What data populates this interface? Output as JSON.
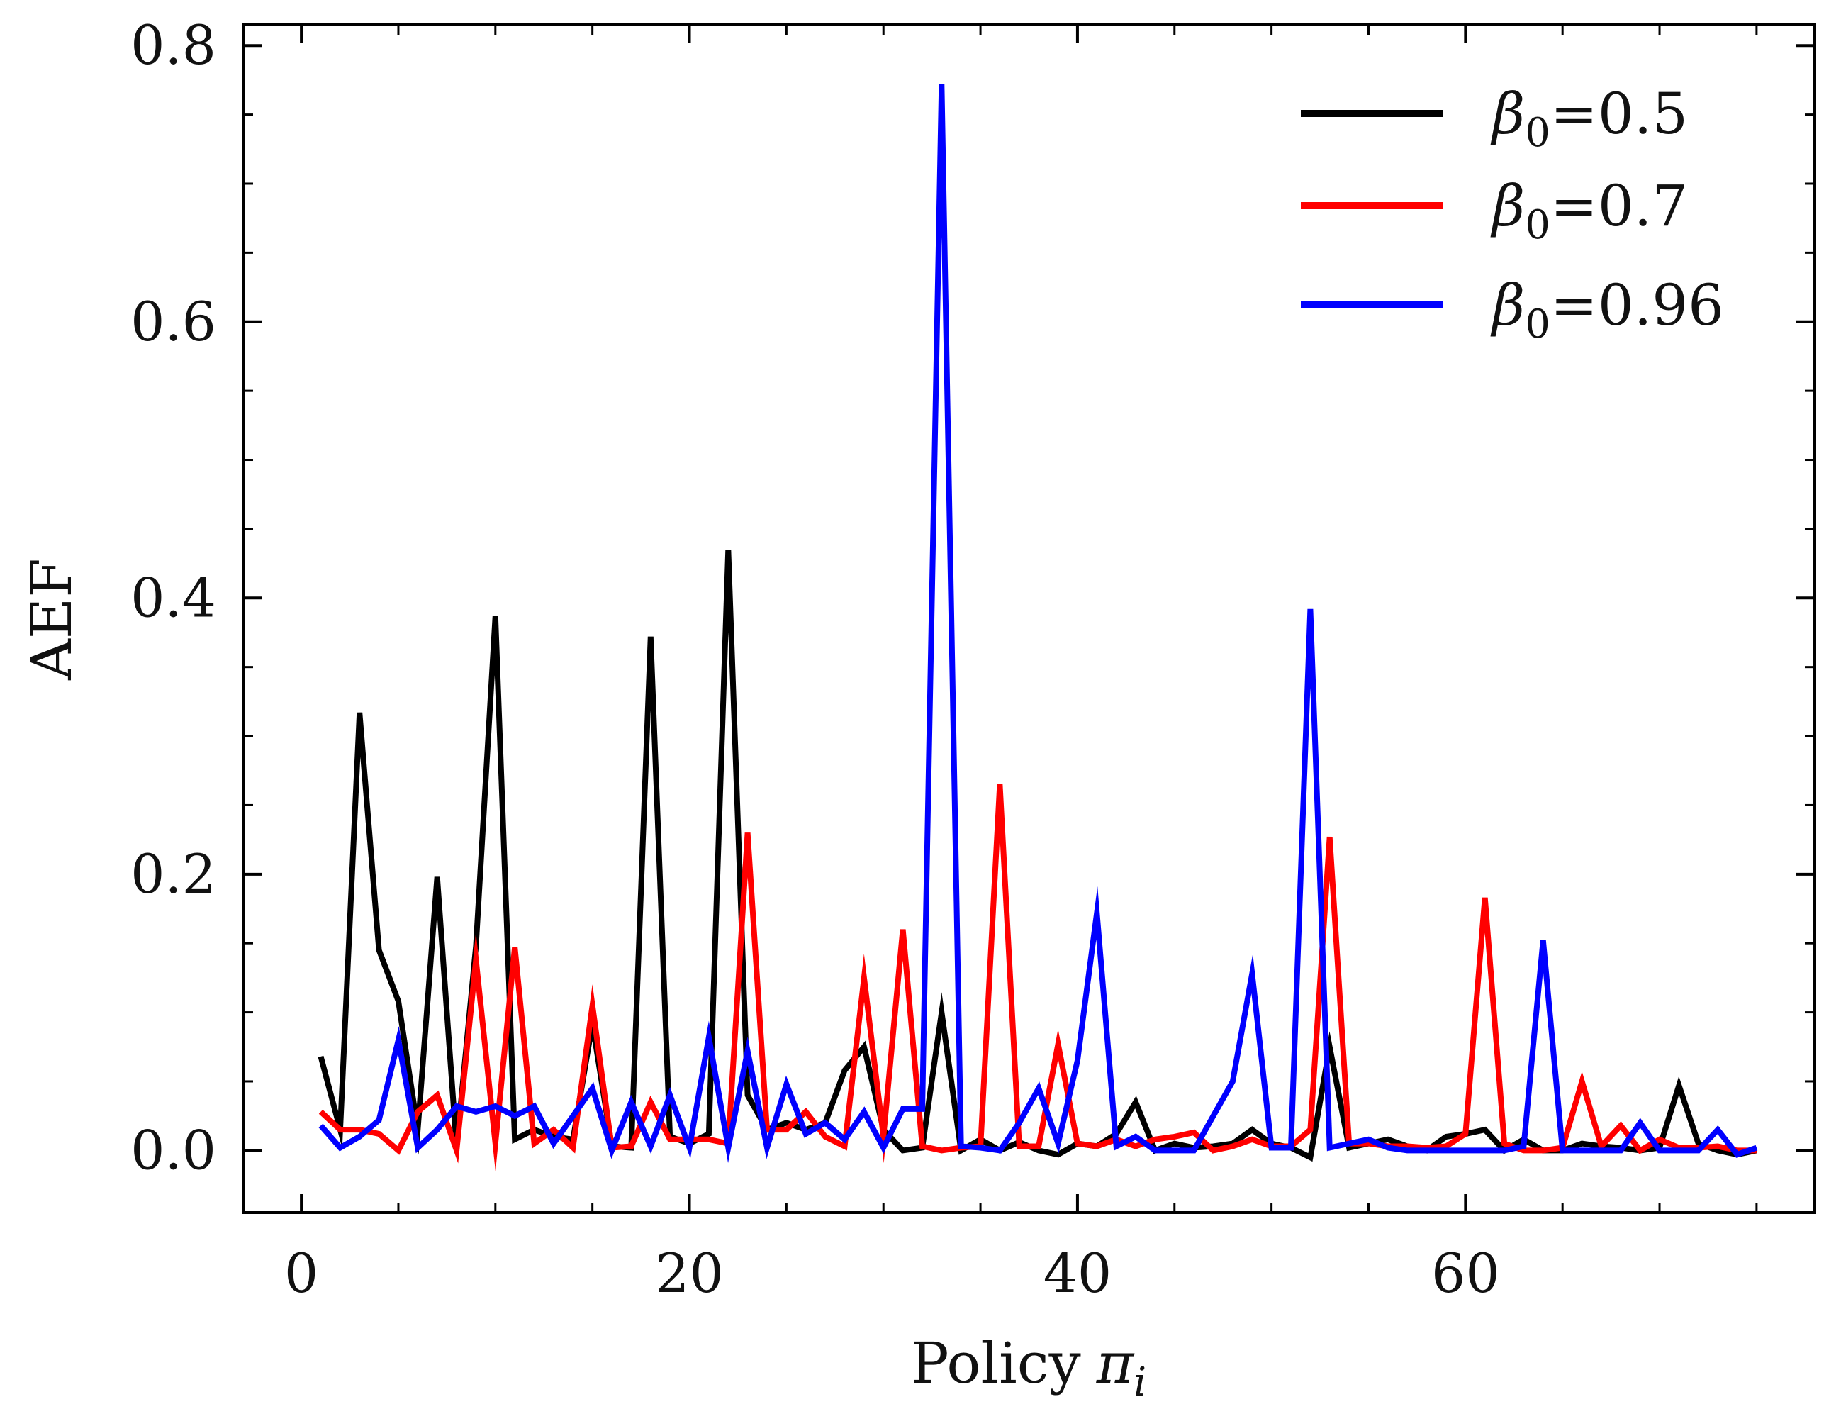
{
  "chart_data": {
    "type": "line",
    "title": "",
    "xlabel": "Policy",
    "xlabel_symbol": "π",
    "xlabel_subscript": "i",
    "ylabel": "AEF",
    "xlim": [
      -3,
      78
    ],
    "ylim": [
      -0.045,
      0.815
    ],
    "x_ticks": [
      0,
      20,
      40,
      60
    ],
    "x_tick_labels": [
      "0",
      "20",
      "40",
      "60"
    ],
    "y_ticks": [
      0.0,
      0.2,
      0.4,
      0.6,
      0.8
    ],
    "y_tick_labels": [
      "0.0",
      "0.2",
      "0.4",
      "0.6",
      "0.8"
    ],
    "grid": false,
    "legend_position": "top-right",
    "x": [
      1,
      2,
      3,
      4,
      5,
      6,
      7,
      8,
      9,
      10,
      11,
      12,
      13,
      14,
      15,
      16,
      17,
      18,
      19,
      20,
      21,
      22,
      23,
      24,
      25,
      26,
      27,
      28,
      29,
      30,
      31,
      32,
      33,
      34,
      35,
      36,
      37,
      38,
      39,
      40,
      41,
      42,
      43,
      44,
      45,
      46,
      47,
      48,
      49,
      50,
      51,
      52,
      53,
      54,
      55,
      56,
      57,
      58,
      59,
      60,
      61,
      62,
      63,
      64,
      65,
      66,
      67,
      68,
      69,
      70,
      71,
      72,
      73,
      74,
      75
    ],
    "series": [
      {
        "name": "β0=0.5",
        "legend_symbol": "β",
        "legend_subscript": "0",
        "legend_value": "=0.5",
        "color": "#000000",
        "values": [
          0.068,
          0.015,
          0.317,
          0.145,
          0.108,
          0.015,
          0.198,
          0.002,
          0.148,
          0.387,
          0.008,
          0.015,
          0.01,
          0.008,
          0.092,
          0.003,
          0.002,
          0.372,
          0.01,
          0.005,
          0.012,
          0.435,
          0.04,
          0.015,
          0.02,
          0.015,
          0.02,
          0.058,
          0.075,
          0.015,
          0.0,
          0.002,
          0.1,
          0.0,
          0.008,
          0.0,
          0.006,
          0.0,
          -0.003,
          0.005,
          0.003,
          0.012,
          0.035,
          0.0,
          0.005,
          0.002,
          0.003,
          0.005,
          0.015,
          0.005,
          0.002,
          -0.005,
          0.075,
          0.002,
          0.005,
          0.008,
          0.003,
          0.0,
          0.01,
          0.012,
          0.015,
          0.0,
          0.008,
          0.0,
          0.0,
          0.005,
          0.003,
          0.002,
          0.0,
          0.002,
          0.047,
          0.005,
          0.0,
          -0.003,
          0.0
        ]
      },
      {
        "name": "β0=0.7",
        "legend_symbol": "β",
        "legend_subscript": "0",
        "legend_value": "=0.7",
        "color": "#ff0000",
        "values": [
          0.028,
          0.015,
          0.015,
          0.012,
          0.0,
          0.028,
          0.04,
          0.0,
          0.138,
          0.005,
          0.147,
          0.005,
          0.015,
          0.002,
          0.105,
          0.002,
          0.003,
          0.035,
          0.008,
          0.008,
          0.008,
          0.005,
          0.23,
          0.015,
          0.015,
          0.028,
          0.01,
          0.003,
          0.125,
          0.01,
          0.16,
          0.003,
          0.0,
          0.002,
          0.003,
          0.265,
          0.003,
          0.003,
          0.077,
          0.005,
          0.003,
          0.008,
          0.003,
          0.008,
          0.01,
          0.013,
          0.0,
          0.003,
          0.008,
          0.003,
          0.003,
          0.015,
          0.227,
          0.005,
          0.005,
          0.003,
          0.003,
          0.002,
          0.003,
          0.012,
          0.183,
          0.005,
          0.0,
          0.0,
          0.002,
          0.05,
          0.003,
          0.018,
          0.0,
          0.008,
          0.002,
          0.002,
          0.003,
          0.0,
          0.0
        ]
      },
      {
        "name": "β0=0.96",
        "legend_symbol": "β",
        "legend_subscript": "0",
        "legend_value": "=0.96",
        "color": "#0000ff",
        "values": [
          0.018,
          0.002,
          0.01,
          0.022,
          0.08,
          0.002,
          0.015,
          0.032,
          0.028,
          0.032,
          0.025,
          0.032,
          0.005,
          0.025,
          0.045,
          0.0,
          0.035,
          0.003,
          0.04,
          0.002,
          0.082,
          0.002,
          0.072,
          0.002,
          0.048,
          0.012,
          0.02,
          0.008,
          0.028,
          0.002,
          0.03,
          0.03,
          0.772,
          0.003,
          0.002,
          0.0,
          0.02,
          0.045,
          0.005,
          0.065,
          0.172,
          0.003,
          0.01,
          0.0,
          0.0,
          0.0,
          0.025,
          0.05,
          0.128,
          0.002,
          0.002,
          0.392,
          0.002,
          0.005,
          0.008,
          0.002,
          0.0,
          0.0,
          0.0,
          0.0,
          0.0,
          0.0,
          0.003,
          0.152,
          0.0,
          0.0,
          0.0,
          0.0,
          0.02,
          0.0,
          0.0,
          0.0,
          0.015,
          -0.003,
          0.002
        ]
      }
    ]
  }
}
